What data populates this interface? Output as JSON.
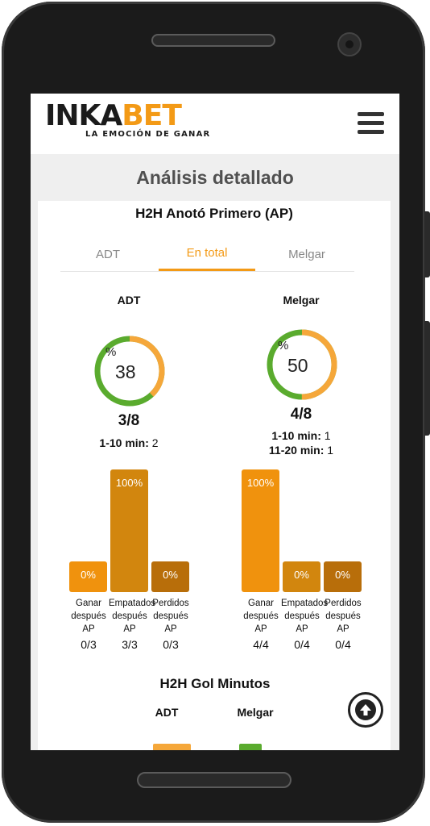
{
  "brand": {
    "logo_text_a": "INKA",
    "logo_text_b": "BET",
    "tagline": "LA EMOCIÓN DE GANAR",
    "accent_color": "#f39a16"
  },
  "header": {
    "menu_icon": "hamburger-menu-icon"
  },
  "page_title": "Análisis detallado",
  "section": {
    "title": "H2H Anotó Primero (AP)",
    "tabs": [
      {
        "label": "ADT",
        "active": false
      },
      {
        "label": "En total",
        "active": true
      },
      {
        "label": "Melgar",
        "active": false
      }
    ]
  },
  "teams": [
    {
      "name": "ADT",
      "percent_sign": "%",
      "percent": "38",
      "fraction": "3/8",
      "minutes": [
        {
          "label": "1-10 min:",
          "value": "2"
        }
      ],
      "bars": [
        {
          "value_label": "0%",
          "percent": 0,
          "label": "Ganar después AP",
          "count": "0/3"
        },
        {
          "value_label": "100%",
          "percent": 100,
          "label": "Empatados después AP",
          "count": "3/3"
        },
        {
          "value_label": "0%",
          "percent": 0,
          "label": "Perdidos después AP",
          "count": "0/3"
        }
      ]
    },
    {
      "name": "Melgar",
      "percent_sign": "%",
      "percent": "50",
      "fraction": "4/8",
      "minutes": [
        {
          "label": "1-10 min:",
          "value": "1"
        },
        {
          "label": "11-20 min:",
          "value": "1"
        }
      ],
      "bars": [
        {
          "value_label": "100%",
          "percent": 100,
          "label": "Ganar después AP",
          "count": "4/4"
        },
        {
          "value_label": "0%",
          "percent": 0,
          "label": "Empatados después AP",
          "count": "0/4"
        },
        {
          "value_label": "0%",
          "percent": 0,
          "label": "Perdidos después AP",
          "count": "0/4"
        }
      ]
    }
  ],
  "gol_minutos": {
    "title": "H2H Gol Minutos",
    "teams": [
      "ADT",
      "Melgar"
    ]
  },
  "colors": {
    "win": "#f0920d",
    "draw": "#d2860e",
    "loss": "#b86e0a",
    "donut_orange": "#f5a73a",
    "donut_green": "#5aab2e"
  },
  "scroll_top_icon": "arrow-up-circle-icon"
}
